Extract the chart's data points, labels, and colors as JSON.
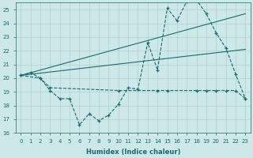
{
  "xlabel": "Humidex (Indice chaleur)",
  "ylabel": "",
  "bg_color": "#cce8e8",
  "line_color": "#1a6b6b",
  "grid_color": "#b0d0d0",
  "xlim": [
    -0.5,
    23.5
  ],
  "ylim": [
    16,
    25.5
  ],
  "yticks": [
    16,
    17,
    18,
    19,
    20,
    21,
    22,
    23,
    24,
    25
  ],
  "xticks": [
    0,
    1,
    2,
    3,
    4,
    5,
    6,
    7,
    8,
    9,
    10,
    11,
    12,
    13,
    14,
    15,
    16,
    17,
    18,
    19,
    20,
    21,
    22,
    23
  ],
  "series1_x": [
    0,
    1,
    2,
    3,
    4,
    5,
    6,
    7,
    8,
    9,
    10,
    11,
    12,
    13,
    14,
    15,
    16,
    17,
    18,
    19,
    20,
    21,
    22,
    23
  ],
  "series1_y": [
    20.2,
    20.4,
    20.0,
    19.1,
    18.5,
    18.5,
    16.6,
    17.4,
    16.9,
    17.3,
    18.1,
    19.3,
    19.2,
    22.6,
    20.6,
    25.1,
    24.2,
    25.6,
    25.7,
    24.7,
    23.3,
    22.2,
    20.3,
    18.5
  ],
  "series2_x": [
    0,
    2,
    3,
    10,
    14,
    15,
    18,
    19,
    20,
    21,
    22,
    23
  ],
  "series2_y": [
    20.2,
    20.0,
    19.3,
    19.1,
    19.1,
    19.1,
    19.1,
    19.1,
    19.1,
    19.1,
    19.1,
    18.5
  ],
  "series3_x": [
    0,
    23
  ],
  "series3_y": [
    20.2,
    24.7
  ],
  "series4_x": [
    0,
    23
  ],
  "series4_y": [
    20.2,
    22.1
  ]
}
